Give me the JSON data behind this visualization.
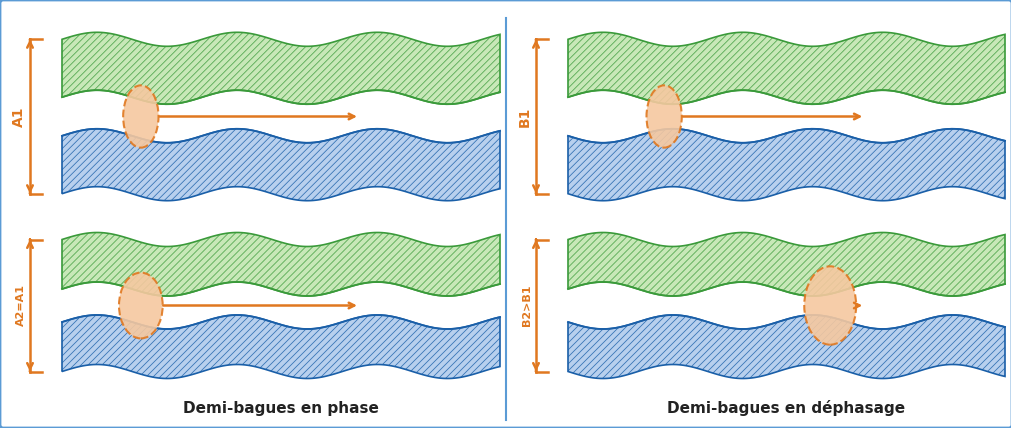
{
  "fig_width": 10.12,
  "fig_height": 4.28,
  "bg_color": "#ffffff",
  "border_color": "#5b9bd5",
  "green_color": "#3a9a3a",
  "green_fill": "#c8e8b8",
  "blue_color": "#1a5fa8",
  "blue_fill": "#b8d0ee",
  "ball_face": "#f5c8a0",
  "ball_edge": "#e07820",
  "orange": "#e07820",
  "left_title": "Demi-bagues en phase",
  "right_title": "Demi-bagues en déphasage",
  "label_A1": "A1",
  "label_A2A1": "A2=A1",
  "label_B1": "B1",
  "label_B2B1": "B2>B1"
}
